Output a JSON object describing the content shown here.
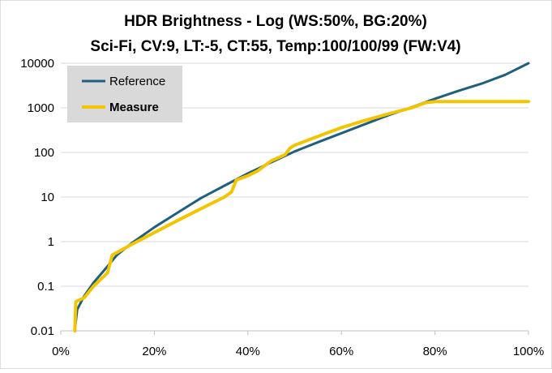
{
  "chart_data": {
    "type": "line",
    "title": "HDR Brightness - Log (WS:50%, BG:20%)",
    "subtitle": "Sci-Fi, CV:9, LT:-5, CT:55, Temp:100/100/99 (FW:V4)",
    "xlabel": "",
    "ylabel": "",
    "xlim": [
      0,
      100
    ],
    "ylim": [
      0.01,
      10000
    ],
    "yscale": "log",
    "x_ticks": [
      "0%",
      "20%",
      "40%",
      "60%",
      "80%",
      "100%"
    ],
    "y_ticks": [
      "0.01",
      "0.1",
      "1",
      "10",
      "100",
      "1000",
      "10000"
    ],
    "grid": "horizontal",
    "legend_position": "top-left",
    "series": [
      {
        "name": "Reference",
        "color": "#1f5f7f",
        "points": [
          [
            3,
            0.01
          ],
          [
            3.5,
            0.03
          ],
          [
            5,
            0.06
          ],
          [
            7,
            0.12
          ],
          [
            10,
            0.28
          ],
          [
            12,
            0.5
          ],
          [
            15,
            0.9
          ],
          [
            20,
            2.1
          ],
          [
            25,
            4.5
          ],
          [
            30,
            9.5
          ],
          [
            35,
            18
          ],
          [
            40,
            34
          ],
          [
            45,
            60
          ],
          [
            50,
            105
          ],
          [
            55,
            170
          ],
          [
            60,
            270
          ],
          [
            65,
            430
          ],
          [
            70,
            680
          ],
          [
            75,
            1030
          ],
          [
            80,
            1600
          ],
          [
            85,
            2400
          ],
          [
            90,
            3500
          ],
          [
            95,
            5500
          ],
          [
            100,
            10000
          ]
        ]
      },
      {
        "name": "Measure",
        "color": "#f2c500",
        "points": [
          [
            3,
            0.01
          ],
          [
            3.2,
            0.045
          ],
          [
            5,
            0.055
          ],
          [
            7,
            0.1
          ],
          [
            10,
            0.2
          ],
          [
            11,
            0.5
          ],
          [
            13,
            0.65
          ],
          [
            15,
            0.85
          ],
          [
            20,
            1.6
          ],
          [
            25,
            3
          ],
          [
            30,
            5.5
          ],
          [
            35,
            10
          ],
          [
            36.5,
            13
          ],
          [
            37.5,
            24
          ],
          [
            40,
            30
          ],
          [
            42,
            38
          ],
          [
            45,
            65
          ],
          [
            47,
            80
          ],
          [
            48,
            90
          ],
          [
            49,
            125
          ],
          [
            50,
            145
          ],
          [
            55,
            230
          ],
          [
            60,
            360
          ],
          [
            65,
            520
          ],
          [
            70,
            730
          ],
          [
            75,
            1000
          ],
          [
            78,
            1300
          ],
          [
            80,
            1380
          ],
          [
            85,
            1380
          ],
          [
            90,
            1380
          ],
          [
            95,
            1380
          ],
          [
            100,
            1380
          ]
        ]
      }
    ]
  }
}
